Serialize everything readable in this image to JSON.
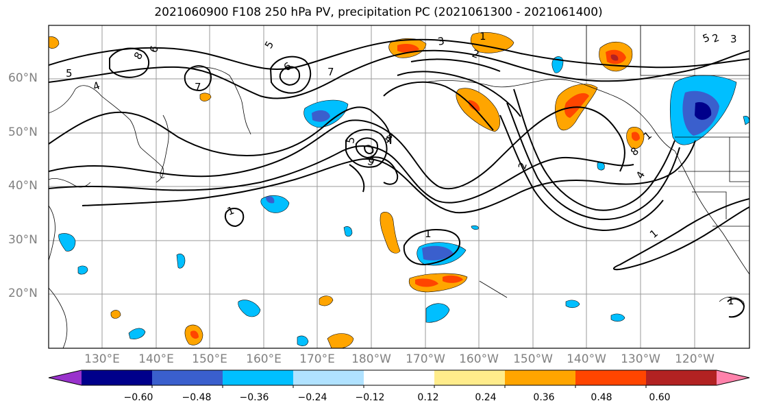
{
  "title": "2021060900 F108 250 hPa PV, precipitation PC (2021061300 - 2021061400)",
  "lat_labels": [
    "60°N",
    "50°N",
    "40°N",
    "30°N",
    "20°N"
  ],
  "lon_labels": [
    "130°E",
    "140°E",
    "150°E",
    "160°E",
    "170°E",
    "180°W",
    "170°W",
    "160°W",
    "150°W",
    "140°W",
    "130°W",
    "120°W"
  ],
  "contour_labels": [
    "5",
    "4",
    "6",
    "7",
    "8",
    "6",
    "7",
    "5",
    "4",
    "3",
    "2",
    "1",
    "6",
    "4",
    "5",
    "1",
    "2",
    "1",
    "8",
    "1",
    "4",
    "5",
    "2",
    "3",
    "1",
    "1"
  ],
  "colorbar": {
    "ticks": [
      "−0.60",
      "−0.48",
      "−0.36",
      "−0.24",
      "−0.12",
      "0.12",
      "0.24",
      "0.36",
      "0.48",
      "0.60"
    ],
    "colors": [
      "#9932cc",
      "#00008b",
      "#3a5fcd",
      "#00bfff",
      "#b0e2ff",
      "#ffffff",
      "#ffec8b",
      "#ffa500",
      "#ff4500",
      "#b22222",
      "#ff82ab"
    ]
  },
  "fill_colors": {
    "neg_light": "#00bfff",
    "neg_mid": "#3a5fcd",
    "neg_dark": "#00008b",
    "pos_light": "#ffec8b",
    "pos_mid": "#ffa500",
    "pos_high": "#ff4500",
    "pos_dark": "#b22222"
  }
}
